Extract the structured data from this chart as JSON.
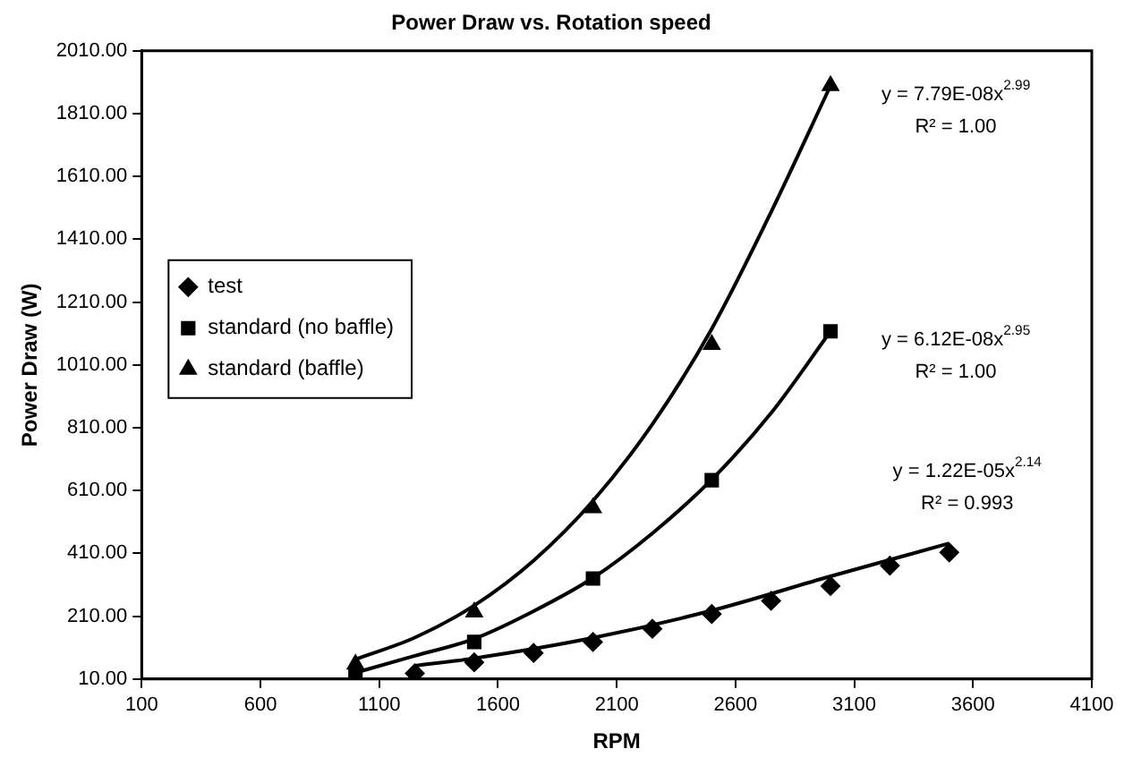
{
  "chart_data": {
    "type": "scatter",
    "title": "Power Draw vs. Rotation speed",
    "xlabel": "RPM",
    "ylabel": "Power Draw (W)",
    "xlim": [
      100,
      4100
    ],
    "xticks": [
      100,
      600,
      1100,
      1600,
      2100,
      2600,
      3100,
      3600,
      4100
    ],
    "ylim": [
      10,
      2010
    ],
    "yticks": [
      {
        "value": 10,
        "label": "10.00"
      },
      {
        "value": 210,
        "label": "210.00"
      },
      {
        "value": 410,
        "label": "410.00"
      },
      {
        "value": 610,
        "label": "610.00"
      },
      {
        "value": 810,
        "label": "810.00"
      },
      {
        "value": 1010,
        "label": "1010.00"
      },
      {
        "value": 1210,
        "label": "1210.00"
      },
      {
        "value": 1410,
        "label": "1410.00"
      },
      {
        "value": 1610,
        "label": "1610.00"
      },
      {
        "value": 1810,
        "label": "1810.00"
      },
      {
        "value": 2010,
        "label": "2010.00"
      }
    ],
    "grid": false,
    "legend": "left",
    "series": [
      {
        "name": "test",
        "color": "#000000",
        "marker": "diamond",
        "x": [
          1250,
          1500,
          1750,
          2000,
          2250,
          2500,
          2750,
          3000,
          3250,
          3500
        ],
        "values": [
          28,
          63,
          93,
          128,
          170,
          217,
          259,
          306,
          371,
          413
        ]
      },
      {
        "name": "standard (no baffle)",
        "color": "#000000",
        "marker": "square",
        "x": [
          1000,
          1500,
          2000,
          2500,
          3000
        ],
        "values": [
          28,
          128,
          330,
          643,
          1117
        ]
      },
      {
        "name": "standard (baffle)",
        "color": "#000000",
        "marker": "triangle",
        "x": [
          1000,
          1500,
          2000,
          2500,
          3000
        ],
        "values": [
          57,
          223,
          555,
          1075,
          1899
        ]
      },
      {
        "type": "line",
        "color": "#000000",
        "marker": "none",
        "x": [
          1250,
          1500,
          2000,
          2500,
          3000,
          3500
        ],
        "values": [
          52,
          76,
          141,
          228,
          337,
          442
        ]
      },
      {
        "type": "line",
        "color": "#000000",
        "marker": "none",
        "x": [
          1000,
          1250,
          1500,
          1750,
          2000,
          2250,
          2500,
          2750,
          3000
        ],
        "values": [
          30,
          84,
          138,
          226,
          332,
          474,
          645,
          857,
          1117
        ]
      },
      {
        "type": "line",
        "color": "#000000",
        "marker": "none",
        "x": [
          1000,
          1250,
          1500,
          1750,
          2000,
          2250,
          2500,
          2750,
          3000
        ],
        "values": [
          73,
          142,
          244,
          387,
          577,
          821,
          1125,
          1497,
          1899
        ]
      }
    ],
    "annotations": [
      "y = 7.79E-08x$^{2.99}$",
      "R² = 1.00",
      "y = 6.12E-08x$^{2.95}$",
      "R² = 1.00",
      "y = 1.22E-05x$^{2.14}$",
      "R² = 0.993"
    ]
  }
}
